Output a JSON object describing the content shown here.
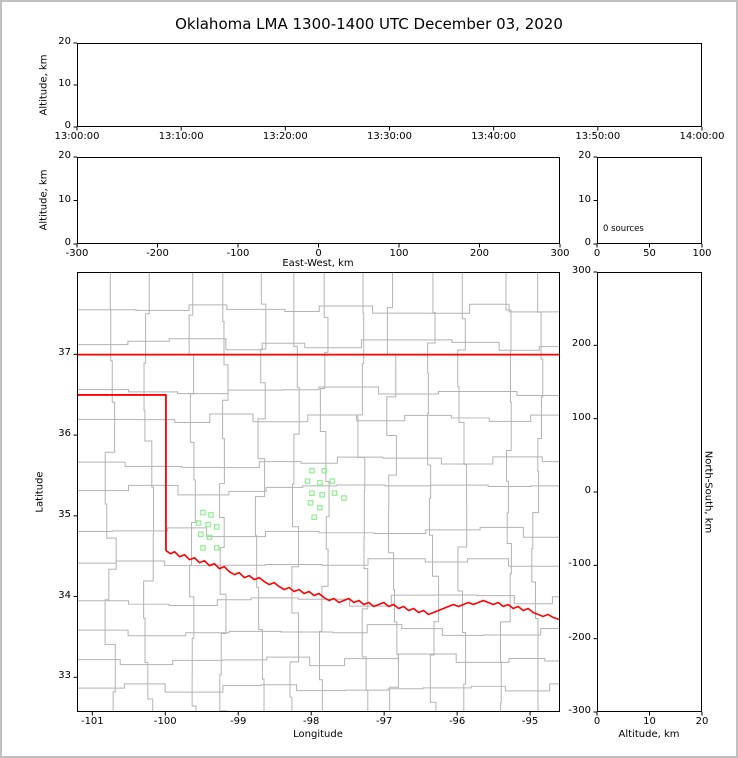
{
  "title": "Oklahoma LMA 1300-1400 UTC December 03, 2020",
  "colors": {
    "state_border": "#ff0000",
    "county_lines": "#b3b3b3",
    "source_marker": "#90ee90",
    "figure_frame": "#c0c0c0",
    "axes": "#000000"
  },
  "chart_data": {
    "type": "scatter",
    "title": "Oklahoma LMA 1300-1400 UTC December 03, 2020",
    "legend": "none",
    "grid": "off",
    "panels": [
      {
        "id": "time",
        "name": "altitude-vs-time",
        "ylabel": "Altitude, km",
        "xlim": [
          0,
          3600
        ],
        "ylim": [
          0,
          20
        ],
        "xticks": [
          0,
          600,
          1200,
          1800,
          2400,
          3000,
          3600
        ],
        "xtick_labels": [
          "13:00:00",
          "13:10:00",
          "13:20:00",
          "13:30:00",
          "13:40:00",
          "13:50:00",
          "14:00:00"
        ],
        "yticks": [
          0,
          10,
          20
        ],
        "series": []
      },
      {
        "id": "ew",
        "name": "altitude-vs-east-west",
        "xlabel": "East-West, km",
        "ylabel": "Altitude, km",
        "xlim": [
          -300,
          300
        ],
        "ylim": [
          0,
          20
        ],
        "xticks": [
          -300,
          -200,
          -100,
          0,
          100,
          200,
          300
        ],
        "yticks": [
          0,
          10,
          20
        ],
        "series": []
      },
      {
        "id": "hist",
        "name": "altitude-source-histogram",
        "annotation": "0 sources",
        "xlim": [
          0,
          100
        ],
        "ylim": [
          0,
          20
        ],
        "xticks": [
          0,
          50,
          100
        ],
        "yticks": [
          0,
          10,
          20
        ],
        "series": []
      },
      {
        "id": "map",
        "name": "plan-view-map",
        "xlabel": "Longitude",
        "ylabel": "Latitude",
        "xlim": [
          -101.21,
          -94.59
        ],
        "ylim": [
          32.57,
          38.02
        ],
        "xticks": [
          -101,
          -100,
          -99,
          -98,
          -97,
          -96,
          -95
        ],
        "yticks": [
          33,
          34,
          35,
          36,
          37
        ],
        "sources": [
          [
            -97.99,
            35.56
          ],
          [
            -97.82,
            35.56
          ],
          [
            -98.05,
            35.43
          ],
          [
            -97.88,
            35.41
          ],
          [
            -97.71,
            35.43
          ],
          [
            -97.99,
            35.28
          ],
          [
            -97.85,
            35.26
          ],
          [
            -97.68,
            35.28
          ],
          [
            -97.55,
            35.22
          ],
          [
            -98.01,
            35.16
          ],
          [
            -97.88,
            35.1
          ],
          [
            -97.96,
            34.98
          ],
          [
            -99.49,
            35.04
          ],
          [
            -99.38,
            35.01
          ],
          [
            -99.55,
            34.91
          ],
          [
            -99.42,
            34.89
          ],
          [
            -99.3,
            34.86
          ],
          [
            -99.52,
            34.77
          ],
          [
            -99.4,
            34.73
          ],
          [
            -99.49,
            34.6
          ],
          [
            -99.3,
            34.6
          ]
        ]
      },
      {
        "id": "ns",
        "name": "altitude-vs-north-south",
        "xlabel": "Altitude, km",
        "ylabel_right": "North-South, km",
        "xlim": [
          0,
          20
        ],
        "ylim": [
          -300,
          300
        ],
        "xticks": [
          0,
          10,
          20
        ],
        "yticks": [
          -300,
          -200,
          -100,
          0,
          100,
          200,
          300
        ],
        "series": []
      }
    ]
  }
}
